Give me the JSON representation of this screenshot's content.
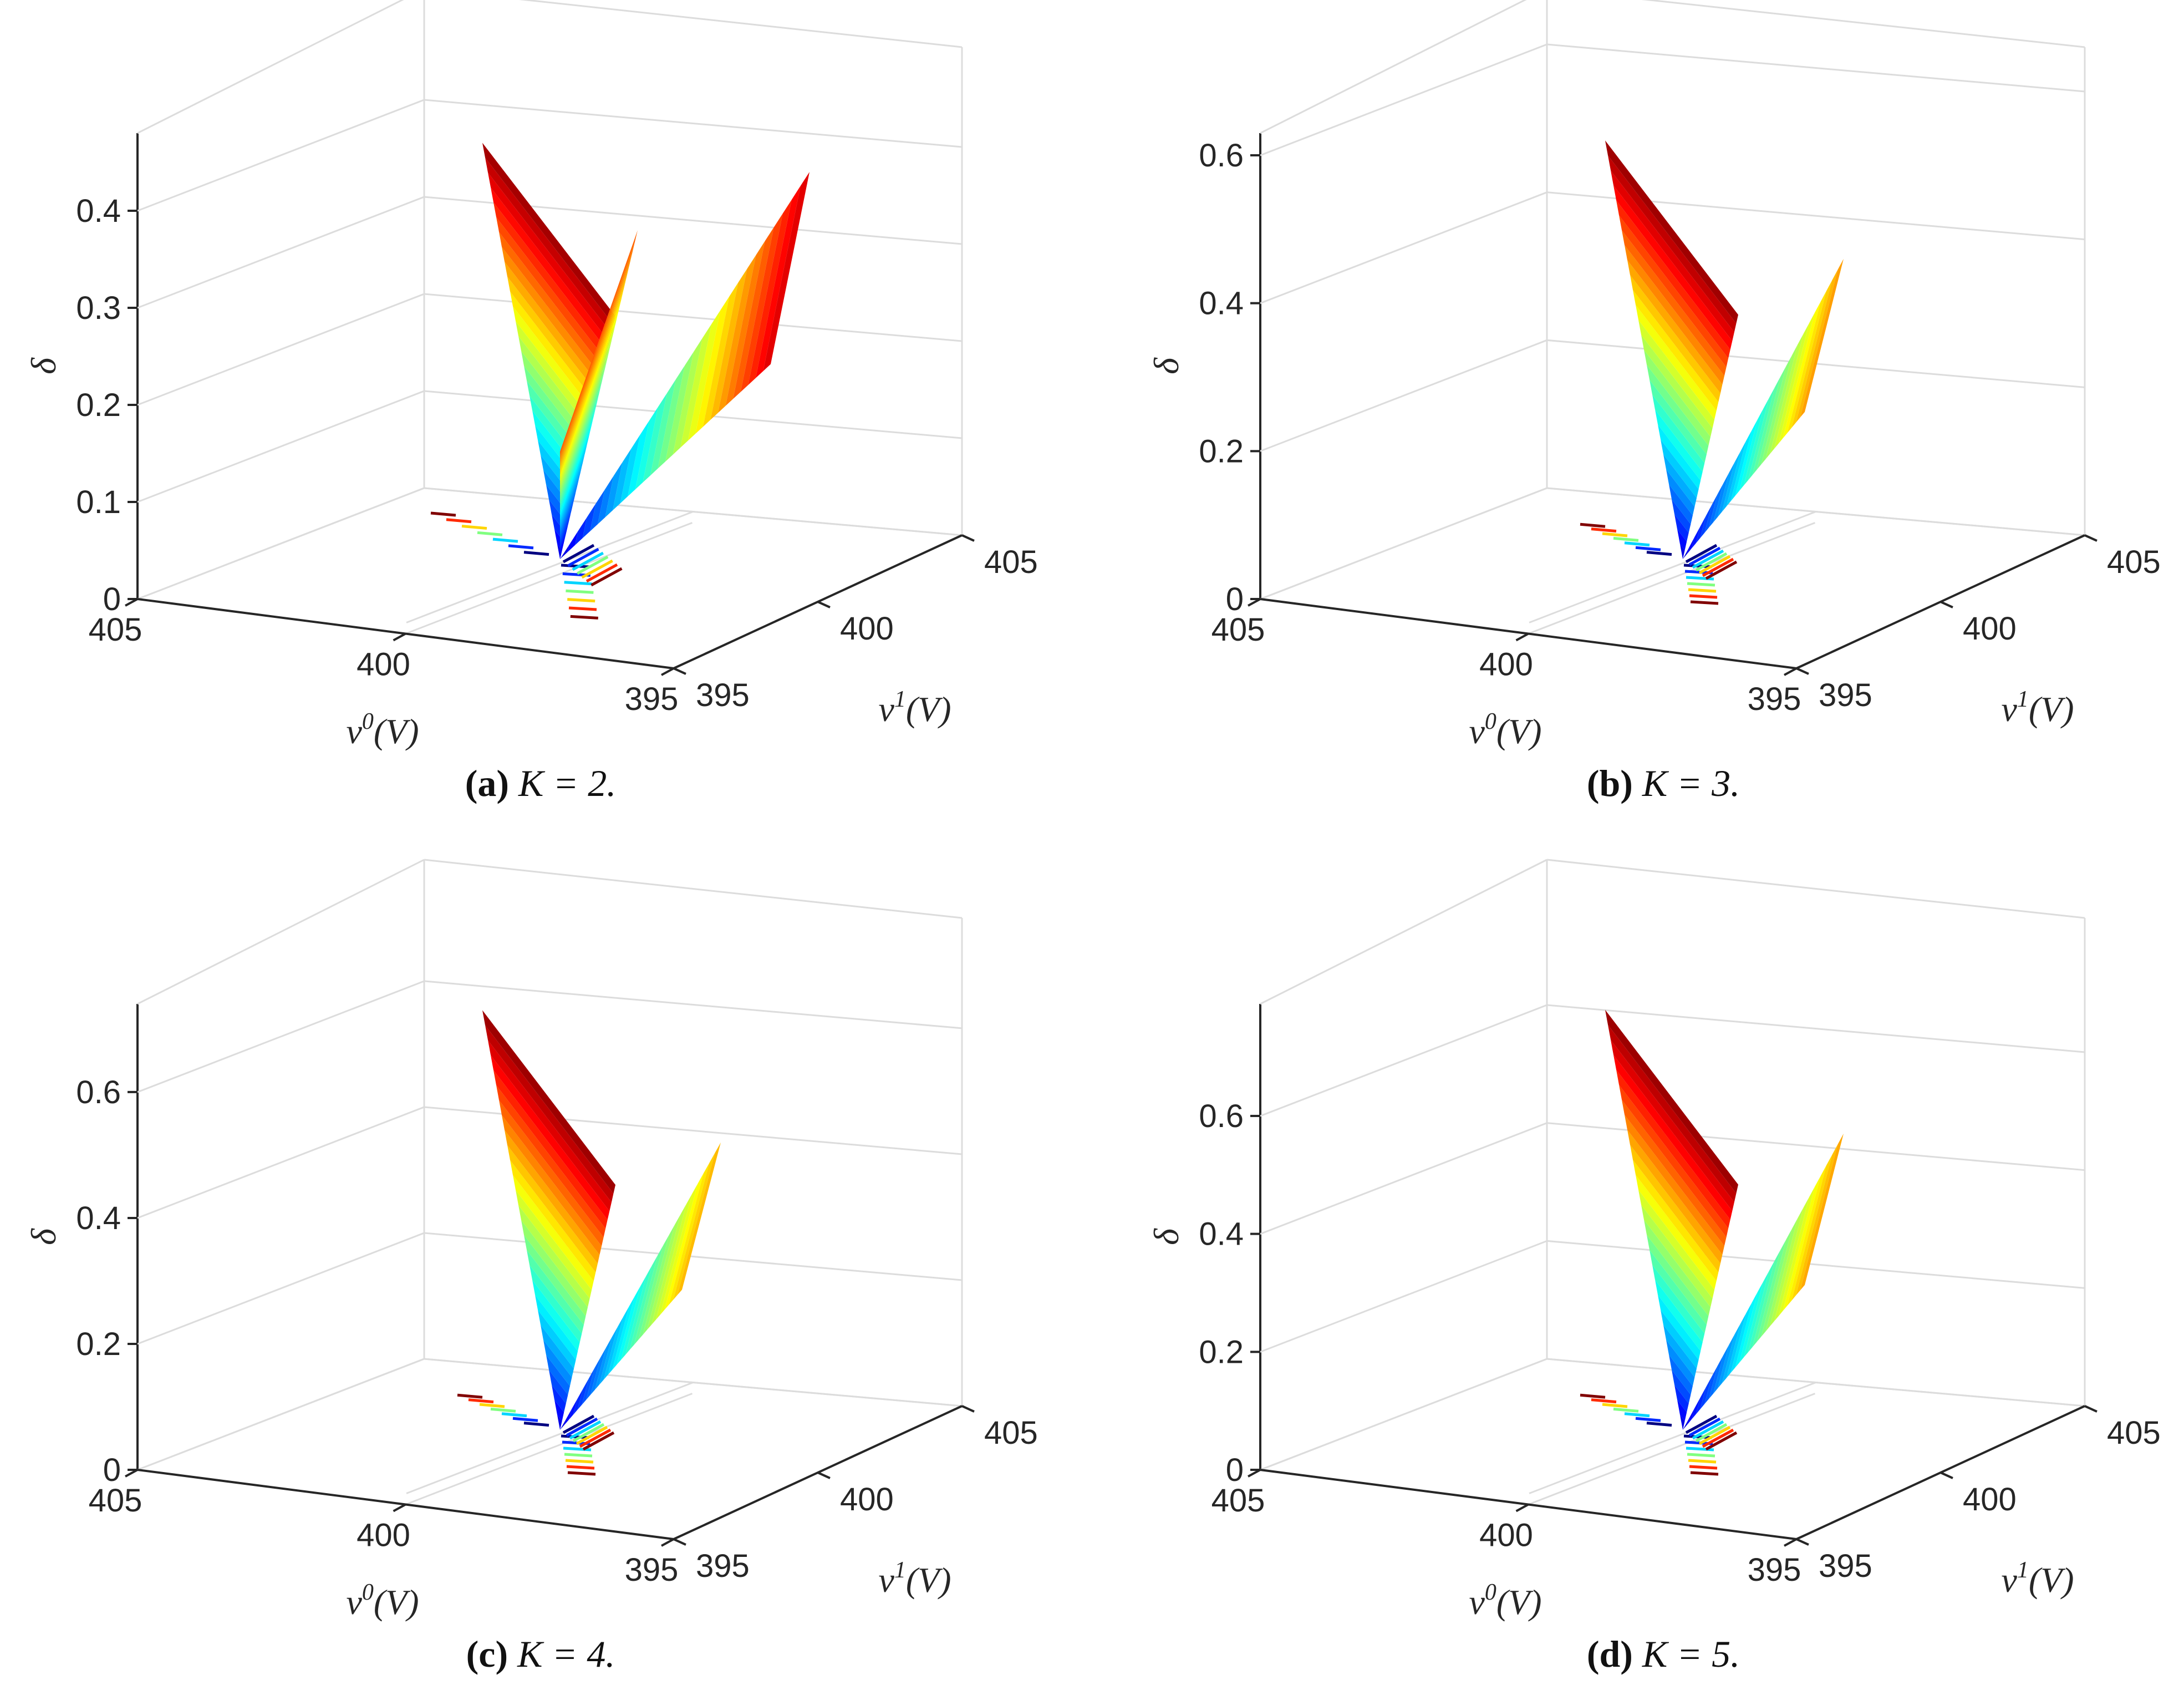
{
  "chart_data": [
    {
      "type": "surface",
      "panel_letter": "a",
      "caption_letter": "(a)",
      "caption_math": "K = 2.",
      "K": 2,
      "zlabel": "δ",
      "xlabel": "v0(V)",
      "ylabel": "v1(V)",
      "x_ticks": [
        "405",
        "400",
        "395"
      ],
      "y_ticks": [
        "395",
        "400",
        "405"
      ],
      "z_ticks": [
        "0",
        "0.1",
        "0.2",
        "0.3",
        "0.4"
      ],
      "zlim": [
        0,
        0.48
      ],
      "colormap": "jet",
      "contour_on_floor": true,
      "grid": true,
      "peak_left": 0.47,
      "peak_middle": 0.38,
      "peak_right": 0.44,
      "valley_minimum": 0.0
    },
    {
      "type": "surface",
      "panel_letter": "b",
      "caption_letter": "(b)",
      "caption_math": "K = 3.",
      "K": 3,
      "zlabel": "δ",
      "xlabel": "v0(V)",
      "ylabel": "v1(V)",
      "x_ticks": [
        "405",
        "400",
        "395"
      ],
      "y_ticks": [
        "395",
        "400",
        "405"
      ],
      "z_ticks": [
        "0",
        "0.2",
        "0.4",
        "0.6"
      ],
      "zlim": [
        0,
        0.63
      ],
      "colormap": "jet",
      "contour_on_floor": true,
      "grid": true,
      "peak_left": 0.62,
      "peak_right": 0.46,
      "valley_minimum": 0.0
    },
    {
      "type": "surface",
      "panel_letter": "c",
      "caption_letter": "(c)",
      "caption_math": "K = 4.",
      "K": 4,
      "zlabel": "δ",
      "xlabel": "v0(V)",
      "ylabel": "v1(V)",
      "x_ticks": [
        "405",
        "400",
        "395"
      ],
      "y_ticks": [
        "395",
        "400",
        "405"
      ],
      "z_ticks": [
        "0",
        "0.2",
        "0.4",
        "0.6"
      ],
      "zlim": [
        0,
        0.74
      ],
      "colormap": "jet",
      "contour_on_floor": true,
      "grid": true,
      "peak_left": 0.73,
      "peak_right": 0.52,
      "valley_minimum": 0.0
    },
    {
      "type": "surface",
      "panel_letter": "d",
      "caption_letter": "(d)",
      "caption_math": "K = 5.",
      "K": 5,
      "zlabel": "δ",
      "xlabel": "v0(V)",
      "ylabel": "v1(V)",
      "x_ticks": [
        "405",
        "400",
        "395"
      ],
      "y_ticks": [
        "395",
        "400",
        "405"
      ],
      "z_ticks": [
        "0",
        "0.2",
        "0.4",
        "0.6"
      ],
      "zlim": [
        0,
        0.79
      ],
      "colormap": "jet",
      "contour_on_floor": true,
      "grid": true,
      "peak_left": 0.78,
      "peak_right": 0.57,
      "valley_minimum": 0.0
    }
  ]
}
